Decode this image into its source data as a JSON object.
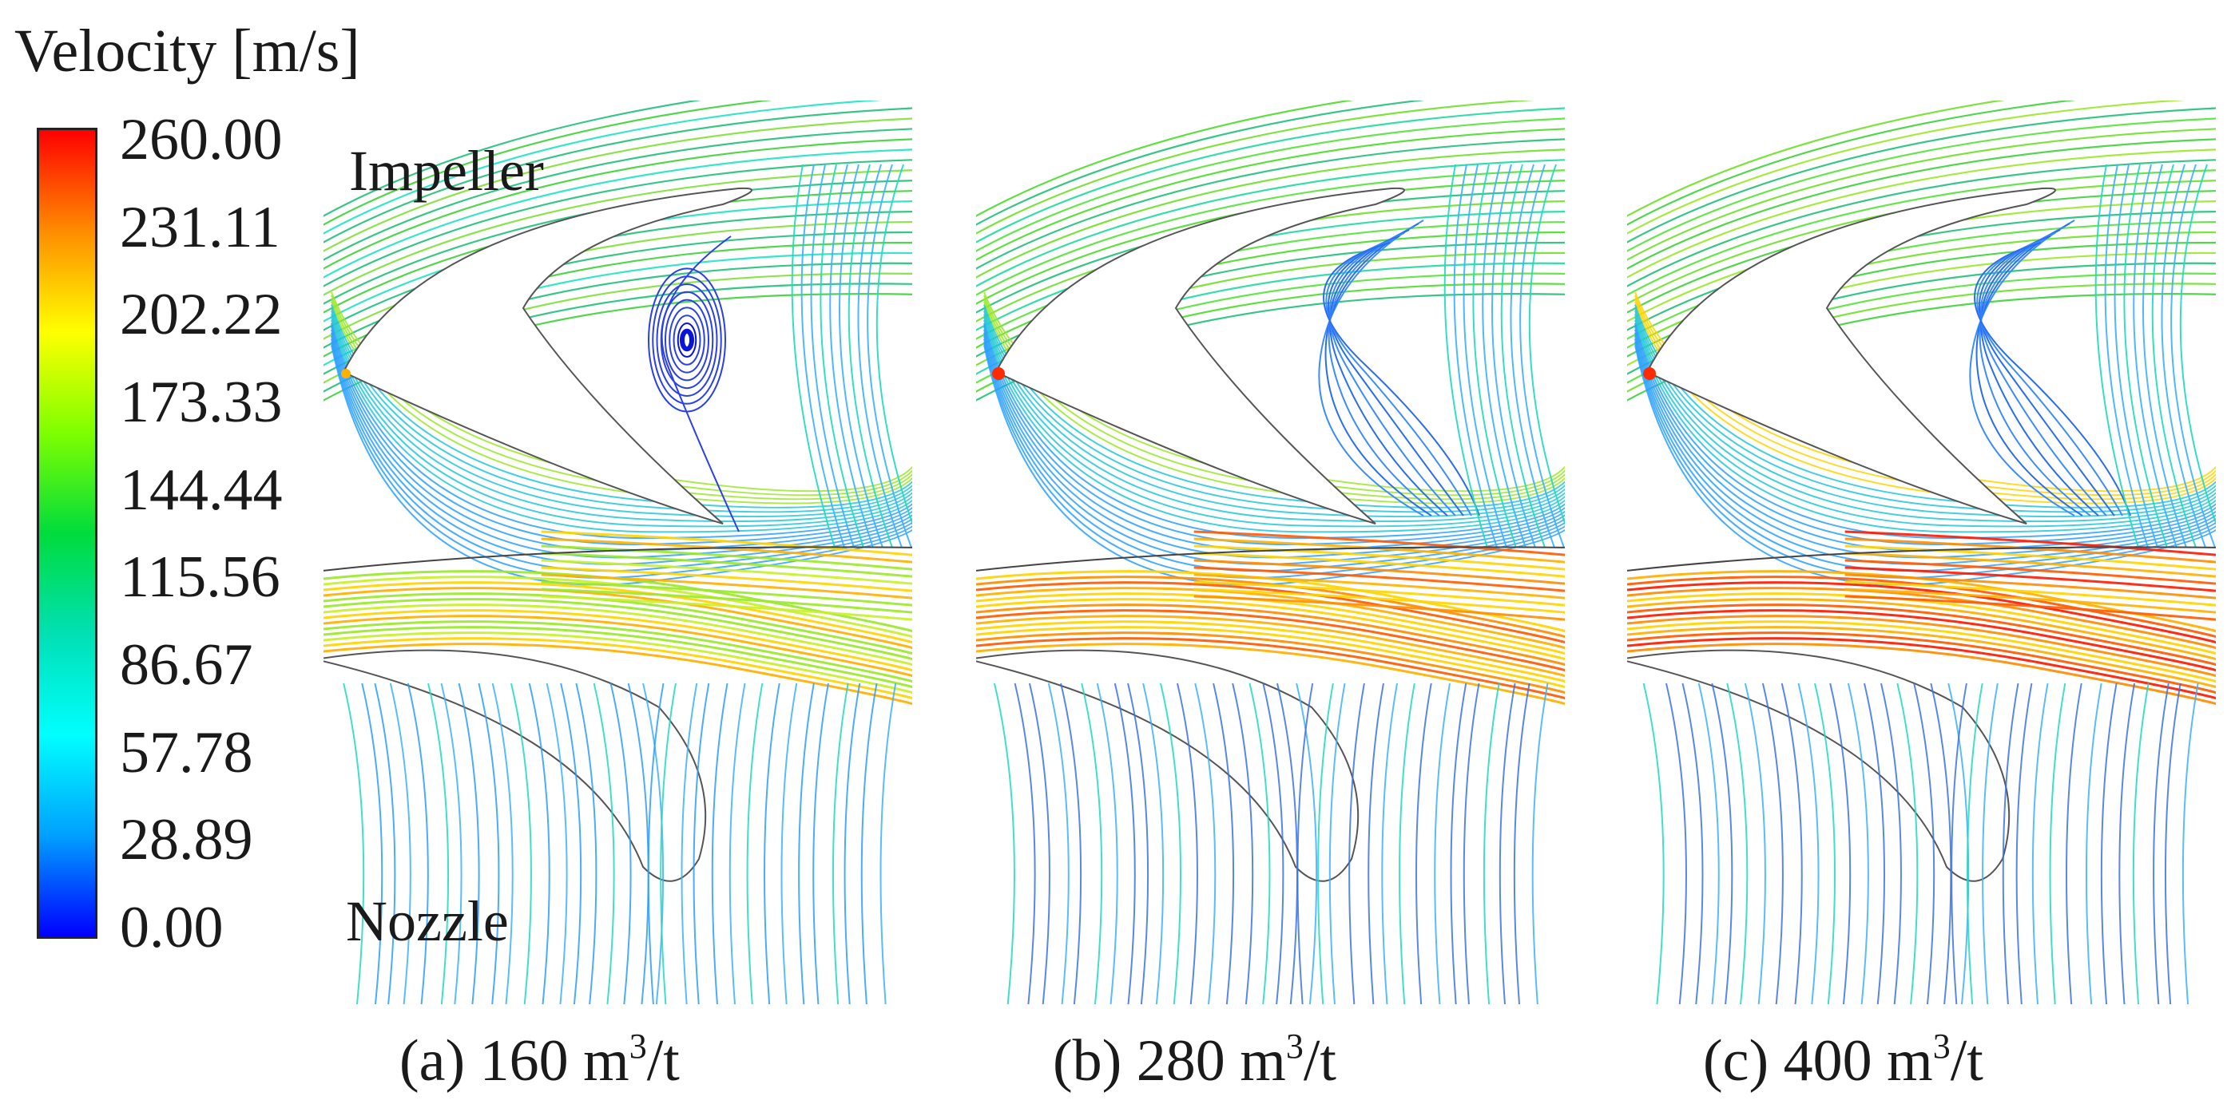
{
  "legend": {
    "title": "Velocity [m/s]",
    "ticks": [
      "260.00",
      "231.11",
      "202.22",
      "173.33",
      "144.44",
      "115.56",
      "86.67",
      "57.78",
      "28.89",
      "0.00"
    ],
    "colors": [
      "#ff0000",
      "#ff8c00",
      "#ffff00",
      "#7fff00",
      "#00dc3c",
      "#00e0b4",
      "#00ffff",
      "#00a0ff",
      "#0000ff"
    ]
  },
  "region_labels": {
    "impeller": "Impeller",
    "nozzle": "Nozzle"
  },
  "panels": [
    {
      "id": "a",
      "caption_prefix": "(a) 160 m",
      "caption_sup": "3",
      "caption_suffix": "/t"
    },
    {
      "id": "b",
      "caption_prefix": "(b) 280 m",
      "caption_sup": "3",
      "caption_suffix": "/t"
    },
    {
      "id": "c",
      "caption_prefix": "(c) 400 m",
      "caption_sup": "3",
      "caption_suffix": "/t"
    }
  ]
}
